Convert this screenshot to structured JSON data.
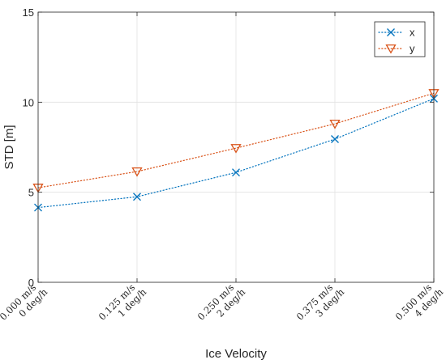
{
  "chart_data": {
    "type": "line",
    "categories": [
      [
        "0.000 m/s",
        "0 deg/h"
      ],
      [
        "0.125 m/s",
        "1 deg/h"
      ],
      [
        "0.250 m/s",
        "2 deg/h"
      ],
      [
        "0.375 m/s",
        "3 deg/h"
      ],
      [
        "0.500 m/s",
        "4 deg/h"
      ]
    ],
    "series": [
      {
        "name": "x",
        "values": [
          4.15,
          4.75,
          6.1,
          7.95,
          10.2
        ],
        "color": "#0072BD",
        "marker": "x-mark",
        "line_style": "dotted"
      },
      {
        "name": "y",
        "values": [
          5.25,
          6.15,
          7.45,
          8.8,
          10.5
        ],
        "color": "#D95319",
        "marker": "triangle-down",
        "line_style": "dotted"
      }
    ],
    "xlabel": "Ice Velocity",
    "ylabel": "STD [m]",
    "ylim": [
      0,
      15
    ],
    "yticks": [
      0,
      5,
      10,
      15
    ],
    "grid": true,
    "legend_position": "top-right"
  }
}
